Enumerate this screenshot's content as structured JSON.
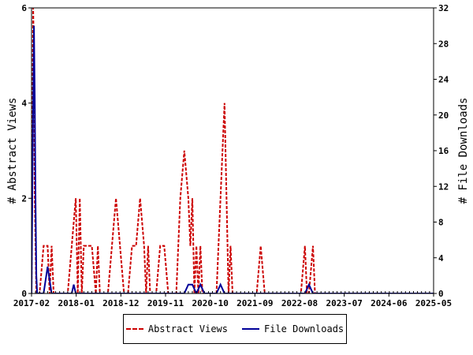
{
  "chart_data": {
    "type": "line",
    "x_ticks": [
      "2017-02",
      "2018-01",
      "2018-12",
      "2019-11",
      "2020-10",
      "2021-09",
      "2022-08",
      "2023-07",
      "2024-06",
      "2025-05"
    ],
    "y_left": {
      "label": "# Abstract Views",
      "lim": [
        0,
        6
      ],
      "ticks": [
        0,
        2,
        4,
        6
      ]
    },
    "y_right": {
      "label": "# File Downloads",
      "lim": [
        0,
        32
      ],
      "ticks": [
        0,
        4,
        8,
        12,
        16,
        20,
        24,
        28,
        32
      ]
    },
    "x_range_months": [
      0,
      100
    ],
    "series": [
      {
        "name": "Abstract Views",
        "axis": "left",
        "color": "#cc0000",
        "style": "dashed",
        "points": [
          [
            0,
            0
          ],
          [
            0.2,
            3
          ],
          [
            0.4,
            6
          ],
          [
            0.6,
            5
          ],
          [
            0.8,
            2
          ],
          [
            1.0,
            1
          ],
          [
            1.2,
            0
          ],
          [
            1.4,
            0
          ],
          [
            2,
            0
          ],
          [
            3,
            1
          ],
          [
            3.5,
            1
          ],
          [
            4,
            1
          ],
          [
            4.5,
            0
          ],
          [
            5,
            1
          ],
          [
            5.5,
            0
          ],
          [
            9,
            0
          ],
          [
            10,
            1
          ],
          [
            11,
            2
          ],
          [
            11.5,
            0
          ],
          [
            12,
            2
          ],
          [
            12.5,
            0
          ],
          [
            13,
            1
          ],
          [
            14,
            1
          ],
          [
            15,
            1
          ],
          [
            16,
            0
          ],
          [
            16.5,
            1
          ],
          [
            17,
            0
          ],
          [
            19,
            0
          ],
          [
            20,
            1
          ],
          [
            21,
            2
          ],
          [
            22,
            1
          ],
          [
            23,
            0
          ],
          [
            24,
            0
          ],
          [
            25,
            1
          ],
          [
            26,
            1
          ],
          [
            27,
            2
          ],
          [
            28,
            1
          ],
          [
            28.5,
            0
          ],
          [
            29,
            1
          ],
          [
            29.5,
            0
          ],
          [
            31,
            0
          ],
          [
            32,
            1
          ],
          [
            33,
            1
          ],
          [
            34,
            0
          ],
          [
            36,
            0
          ],
          [
            37,
            2
          ],
          [
            38,
            3
          ],
          [
            39,
            2
          ],
          [
            39.5,
            1
          ],
          [
            40,
            2
          ],
          [
            40.5,
            0
          ],
          [
            41,
            1
          ],
          [
            41.5,
            0
          ],
          [
            42,
            1
          ],
          [
            42.5,
            0
          ],
          [
            46,
            0
          ],
          [
            47,
            2
          ],
          [
            48,
            4
          ],
          [
            48.5,
            2
          ],
          [
            49,
            0
          ],
          [
            49.5,
            1
          ],
          [
            50,
            0
          ],
          [
            56,
            0
          ],
          [
            57,
            1
          ],
          [
            58,
            0
          ],
          [
            67,
            0
          ],
          [
            68,
            1
          ],
          [
            68.5,
            0
          ],
          [
            69,
            0
          ],
          [
            70,
            1
          ],
          [
            70.5,
            0
          ],
          [
            100,
            0
          ]
        ]
      },
      {
        "name": "File Downloads",
        "axis": "right",
        "color": "#000099",
        "style": "solid",
        "points": [
          [
            0,
            0
          ],
          [
            0.3,
            16
          ],
          [
            0.6,
            30
          ],
          [
            0.8,
            22
          ],
          [
            1.0,
            10
          ],
          [
            1.2,
            2
          ],
          [
            1.4,
            0
          ],
          [
            3,
            0
          ],
          [
            4,
            3
          ],
          [
            5,
            0
          ],
          [
            10,
            0
          ],
          [
            10.5,
            1
          ],
          [
            11,
            0
          ],
          [
            38,
            0
          ],
          [
            39,
            1
          ],
          [
            40,
            1
          ],
          [
            41,
            0
          ],
          [
            42,
            1
          ],
          [
            43,
            0
          ],
          [
            46,
            0
          ],
          [
            47,
            1
          ],
          [
            48,
            0
          ],
          [
            68,
            0
          ],
          [
            69,
            1
          ],
          [
            70,
            0
          ],
          [
            100,
            0
          ]
        ]
      }
    ],
    "legend": "bottom",
    "grid": false
  }
}
